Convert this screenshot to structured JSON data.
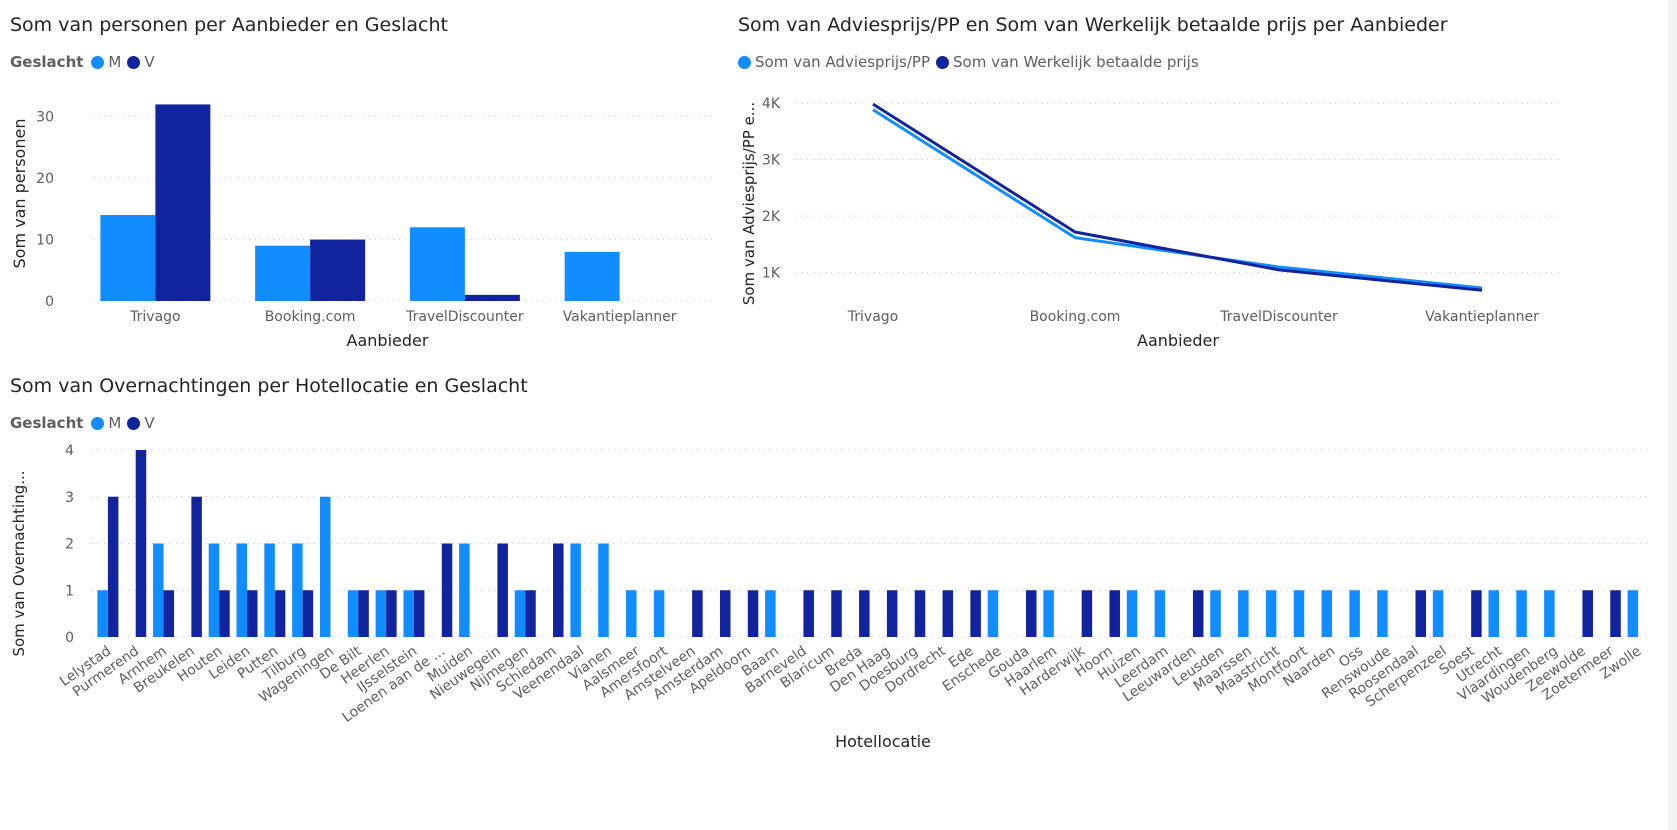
{
  "colors": {
    "m": "#118dff",
    "v": "#12239e",
    "grid": "#c8c6c4",
    "axis_text": "#605e5c"
  },
  "chart1": {
    "title": "Som van personen per Aanbieder en Geslacht",
    "legend_title": "Geslacht",
    "legend_items": [
      "M",
      "V"
    ],
    "chart_data": {
      "type": "bar",
      "categories": [
        "Trivago",
        "Booking.com",
        "TravelDiscounter",
        "Vakantieplanner"
      ],
      "series": [
        {
          "name": "M",
          "values": [
            14,
            9,
            12,
            8
          ]
        },
        {
          "name": "V",
          "values": [
            32,
            10,
            1,
            0
          ]
        }
      ],
      "xlabel": "Aanbieder",
      "ylabel": "Som van personen",
      "ylim": [
        0,
        35
      ],
      "yticks": [
        "0",
        "10",
        "20",
        "30"
      ],
      "grid": true,
      "legend": "top-left"
    }
  },
  "chart2": {
    "title": "Som van Adviesprijs/PP en Som van Werkelijk betaalde prijs per Aanbieder",
    "legend_items": [
      "Som van Adviesprijs/PP",
      "Som van Werkelijk betaalde prijs"
    ],
    "chart_data": {
      "type": "line",
      "categories": [
        "Trivago",
        "Booking.com",
        "TravelDiscounter",
        "Vakantieplanner"
      ],
      "series": [
        {
          "name": "Som van Adviesprijs/PP",
          "values": [
            3880,
            1620,
            1100,
            730
          ]
        },
        {
          "name": "Som van Werkelijk betaalde prijs",
          "values": [
            3980,
            1720,
            1050,
            690
          ]
        }
      ],
      "xlabel": "Aanbieder",
      "ylabel": "Som van Adviesprijs/PP e...",
      "ylim": [
        500,
        4300
      ],
      "yticks": [
        "1K",
        "2K",
        "3K",
        "4K"
      ],
      "grid": true,
      "legend": "top-left"
    }
  },
  "chart3": {
    "title": "Som van Overnachtingen per Hotellocatie en Geslacht",
    "legend_title": "Geslacht",
    "legend_items": [
      "M",
      "V"
    ],
    "chart_data": {
      "type": "bar",
      "categories": [
        "Lelystad",
        "Purmerend",
        "Arnhem",
        "Breukelen",
        "Houten",
        "Leiden",
        "Putten",
        "Tilburg",
        "Wageningen",
        "De Bilt",
        "Heerlen",
        "IJsselstein",
        "Loenen aan de ...",
        "Muiden",
        "Nieuwegein",
        "Nijmegen",
        "Schiedam",
        "Veenendaal",
        "Vianen",
        "Aalsmeer",
        "Amersfoort",
        "Amstelveen",
        "Amsterdam",
        "Apeldoorn",
        "Baarn",
        "Barneveld",
        "Blaricum",
        "Breda",
        "Den Haag",
        "Doesburg",
        "Dordrecht",
        "Ede",
        "Enschede",
        "Gouda",
        "Haarlem",
        "Harderwijk",
        "Hoorn",
        "Huizen",
        "Leerdam",
        "Leeuwarden",
        "Leusden",
        "Maarssen",
        "Maastricht",
        "Montfoort",
        "Naarden",
        "Oss",
        "Renswoude",
        "Roosendaal",
        "Scherpenzeel",
        "Soest",
        "Utrecht",
        "Vlaardingen",
        "Woudenberg",
        "Zeewolde",
        "Zoetermeer",
        "Zwolle"
      ],
      "series": [
        {
          "name": "M",
          "values": [
            1,
            0,
            2,
            0,
            2,
            2,
            2,
            2,
            3,
            1,
            1,
            1,
            0,
            2,
            0,
            1,
            0,
            2,
            2,
            1,
            1,
            0,
            0,
            0,
            1,
            0,
            0,
            0,
            0,
            0,
            0,
            0,
            1,
            0,
            1,
            0,
            0,
            1,
            1,
            0,
            1,
            1,
            1,
            1,
            1,
            1,
            1,
            0,
            1,
            0,
            1,
            1,
            1,
            0,
            0,
            1
          ]
        },
        {
          "name": "V",
          "values": [
            3,
            4,
            1,
            3,
            1,
            1,
            1,
            1,
            0,
            1,
            1,
            1,
            2,
            0,
            2,
            1,
            2,
            0,
            0,
            0,
            0,
            1,
            1,
            1,
            0,
            1,
            1,
            1,
            1,
            1,
            1,
            1,
            0,
            1,
            0,
            1,
            1,
            0,
            0,
            1,
            0,
            0,
            0,
            0,
            0,
            0,
            0,
            1,
            0,
            1,
            0,
            0,
            0,
            1,
            1,
            0
          ]
        }
      ],
      "xlabel": "Hotellocatie",
      "ylabel": "Som van Overnachting...",
      "ylim": [
        0,
        4
      ],
      "yticks": [
        "0",
        "1",
        "2",
        "3",
        "4"
      ],
      "grid": true,
      "legend": "top-left"
    }
  }
}
